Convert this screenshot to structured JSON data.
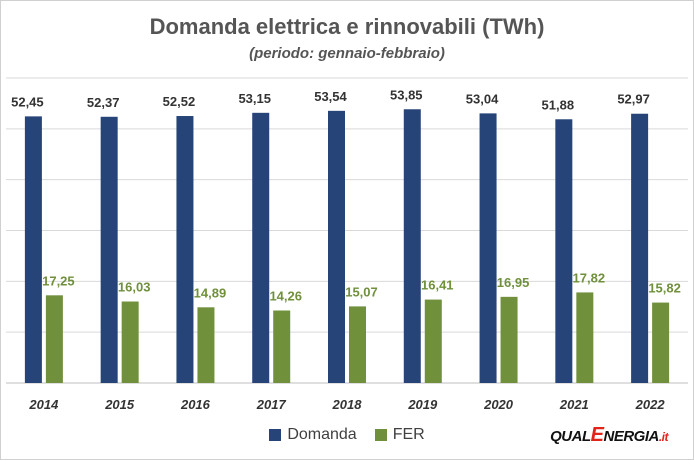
{
  "colors": {
    "domanda": "#264478",
    "fer": "#70903b",
    "grid": "#d9d9d9",
    "axis": "#bfbfbf"
  },
  "logo": {
    "qual": "QUAL",
    "e": "E",
    "nergia": "NERGIA",
    "it": ".it"
  },
  "chart_data": {
    "type": "bar",
    "title": "Domanda elettrica e rinnovabili (TWh)",
    "subtitle": "(periodo: gennaio-febbraio)",
    "categories": [
      "2014",
      "2015",
      "2016",
      "2017",
      "2018",
      "2019",
      "2020",
      "2021",
      "2022"
    ],
    "series": [
      {
        "name": "Domanda",
        "values": [
          52.45,
          52.37,
          52.52,
          53.15,
          53.54,
          53.85,
          53.04,
          51.88,
          52.97
        ],
        "labels": [
          "52,45",
          "52,37",
          "52,52",
          "53,15",
          "53,54",
          "53,85",
          "53,04",
          "51,88",
          "52,97"
        ]
      },
      {
        "name": "FER",
        "values": [
          17.25,
          16.03,
          14.89,
          14.26,
          15.07,
          16.41,
          16.95,
          17.82,
          15.82
        ],
        "labels": [
          "17,25",
          "16,03",
          "14,89",
          "14,26",
          "15,07",
          "16,41",
          "16,95",
          "17,82",
          "15,82"
        ]
      }
    ],
    "ylim": [
      0,
      60
    ],
    "grid": true,
    "legend": "bottom"
  }
}
